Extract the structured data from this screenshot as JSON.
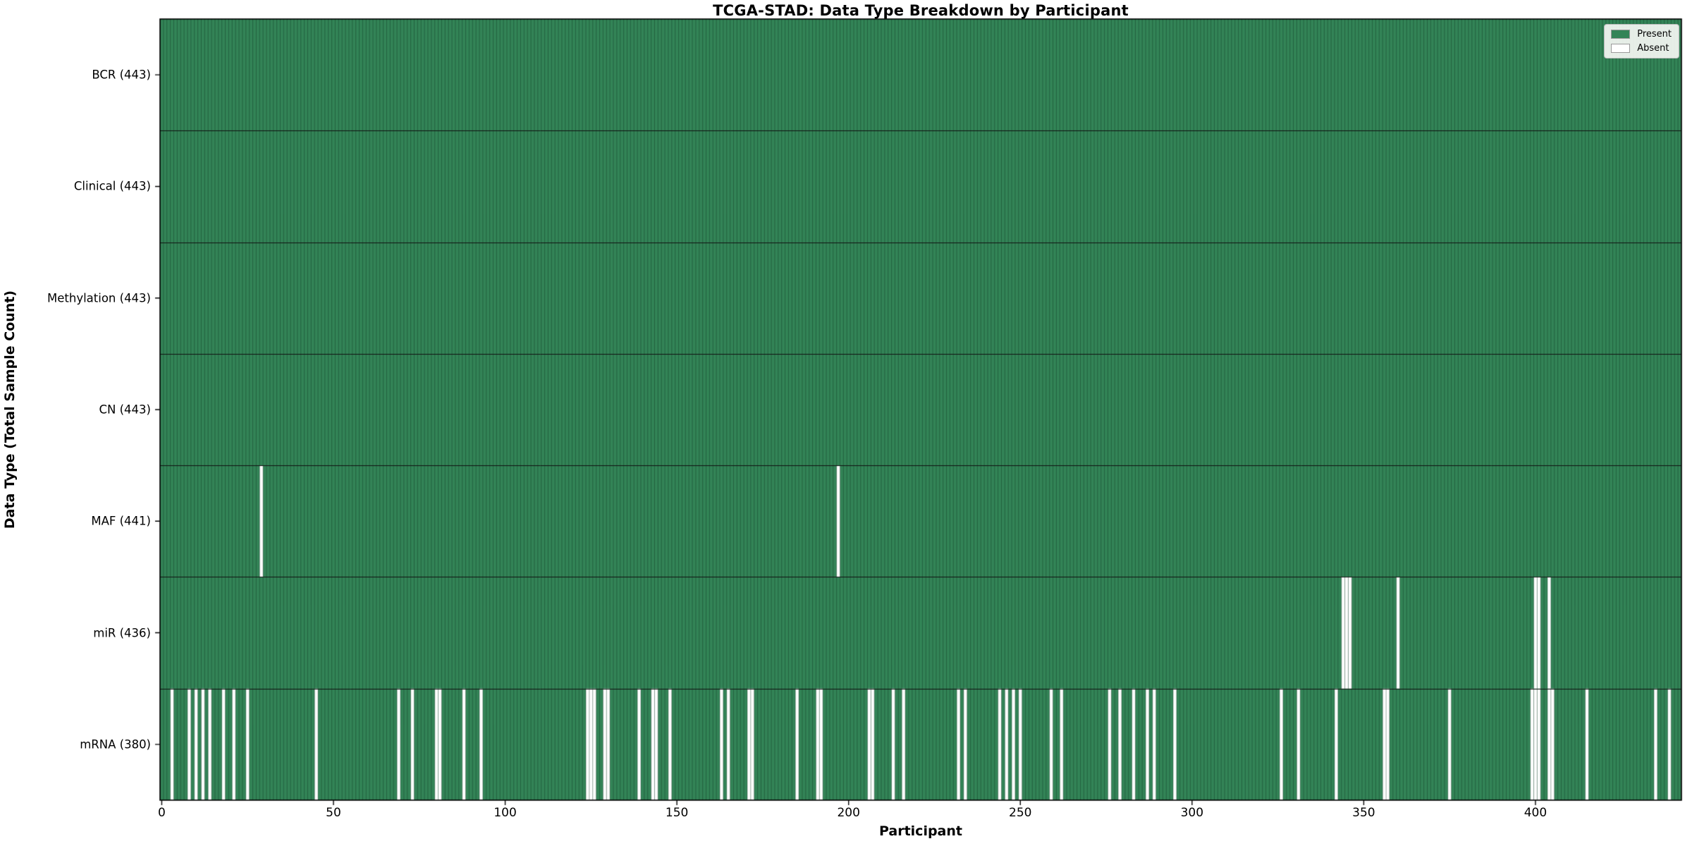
{
  "title": "TCGA-STAD: Data Type Breakdown by Participant",
  "xlabel": "Participant",
  "ylabel": "Data Type (Total Sample Count)",
  "legend": {
    "present_label": "Present",
    "absent_label": "Absent"
  },
  "colors": {
    "present": "#338457",
    "absent": "#ffffff",
    "bar_edge": "rgba(5, 35, 20, 0.5)",
    "row_separator": "#111111",
    "plot_border": "#000000"
  },
  "chart_data": {
    "type": "heatmap",
    "title": "TCGA-STAD: Data Type Breakdown by Participant",
    "xlabel": "Participant",
    "ylabel": "Data Type (Total Sample Count)",
    "n_participants": 443,
    "x_ticks": [
      0,
      50,
      100,
      150,
      200,
      250,
      300,
      350,
      400
    ],
    "legend_entries": [
      "Present",
      "Absent"
    ],
    "legend_position": "upper right",
    "grid": false,
    "cell_values": "1 = Present (green), 0 = Absent (white); rows list absent participant indices",
    "rows": [
      {
        "label": "BCR (443)",
        "data_type": "BCR",
        "present_count": 443,
        "absent": []
      },
      {
        "label": "Clinical (443)",
        "data_type": "Clinical",
        "present_count": 443,
        "absent": []
      },
      {
        "label": "Methylation (443)",
        "data_type": "Methylation",
        "present_count": 443,
        "absent": []
      },
      {
        "label": "CN (443)",
        "data_type": "CN",
        "present_count": 443,
        "absent": []
      },
      {
        "label": "MAF (441)",
        "data_type": "MAF",
        "present_count": 441,
        "absent": [
          29,
          197
        ]
      },
      {
        "label": "miR (436)",
        "data_type": "miR",
        "present_count": 436,
        "absent": [
          344,
          345,
          346,
          360,
          400,
          401,
          404
        ]
      },
      {
        "label": "mRNA (380)",
        "data_type": "mRNA",
        "present_count": 380,
        "absent": [
          3,
          8,
          10,
          12,
          14,
          18,
          21,
          25,
          45,
          69,
          73,
          80,
          81,
          88,
          93,
          124,
          125,
          126,
          129,
          130,
          139,
          143,
          144,
          148,
          163,
          165,
          171,
          172,
          185,
          191,
          192,
          206,
          207,
          213,
          216,
          232,
          234,
          244,
          246,
          248,
          250,
          259,
          262,
          276,
          279,
          283,
          287,
          289,
          295,
          326,
          331,
          342,
          356,
          357,
          375,
          399,
          400,
          401,
          404,
          405,
          415,
          435,
          439
        ]
      }
    ]
  }
}
